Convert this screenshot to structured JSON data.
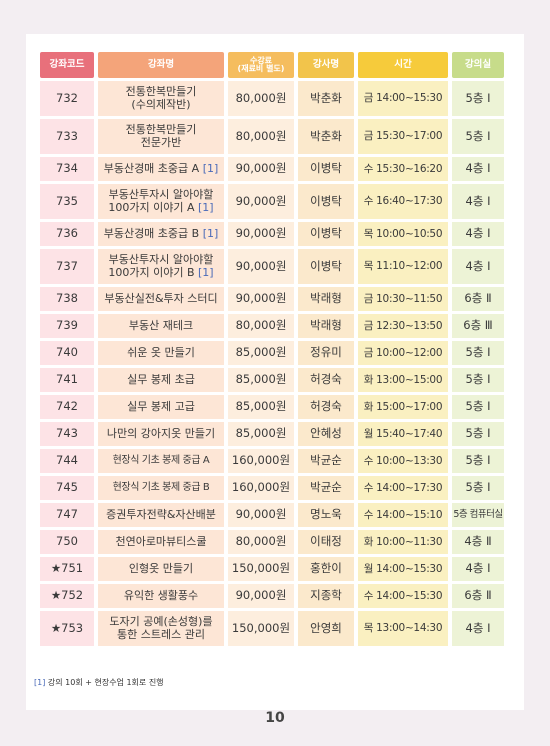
{
  "headers": {
    "code": "강좌코드",
    "name": "강좌명",
    "fee_line1": "수강료",
    "fee_line2": "(재료비 별도)",
    "teacher": "강사명",
    "time": "시간",
    "room": "강의실"
  },
  "rows": [
    {
      "code": "732",
      "name": "전통한복만들기\n(수의제작반)",
      "ref": "",
      "fee": "80,000원",
      "teacher": "박춘화",
      "time": "금 14:00~15:30",
      "room": "5층 Ⅰ",
      "tall": true
    },
    {
      "code": "733",
      "name": "전통한복만들기\n전문가반",
      "ref": "",
      "fee": "80,000원",
      "teacher": "박춘화",
      "time": "금 15:30~17:00",
      "room": "5층 Ⅰ",
      "tall": true
    },
    {
      "code": "734",
      "name": "부동산경매 초중급 A ",
      "ref": "[1]",
      "fee": "90,000원",
      "teacher": "이병탁",
      "time": "수 15:30~16:20",
      "room": "4층 Ⅰ",
      "tall": false
    },
    {
      "code": "735",
      "name": "부동산투자시 알아야할\n100가지 이야기 A ",
      "ref": "[1]",
      "fee": "90,000원",
      "teacher": "이병탁",
      "time": "수 16:40~17:30",
      "room": "4층 Ⅰ",
      "tall": true
    },
    {
      "code": "736",
      "name": "부동산경매 초중급 B ",
      "ref": "[1]",
      "fee": "90,000원",
      "teacher": "이병탁",
      "time": "목 10:00~10:50",
      "room": "4층 Ⅰ",
      "tall": false
    },
    {
      "code": "737",
      "name": "부동산투자시 알아야할\n100가지 이야기 B ",
      "ref": "[1]",
      "fee": "90,000원",
      "teacher": "이병탁",
      "time": "목 11:10~12:00",
      "room": "4층 Ⅰ",
      "tall": true
    },
    {
      "code": "738",
      "name": "부동산실전&투자 스터디",
      "ref": "",
      "fee": "90,000원",
      "teacher": "박래형",
      "time": "금 10:30~11:50",
      "room": "6층 Ⅱ",
      "tall": false
    },
    {
      "code": "739",
      "name": "부동산 재테크",
      "ref": "",
      "fee": "80,000원",
      "teacher": "박래형",
      "time": "금 12:30~13:50",
      "room": "6층 Ⅲ",
      "tall": false
    },
    {
      "code": "740",
      "name": "쉬운 옷 만들기",
      "ref": "",
      "fee": "85,000원",
      "teacher": "정유미",
      "time": "금 10:00~12:00",
      "room": "5층 Ⅰ",
      "tall": false
    },
    {
      "code": "741",
      "name": "실무 봉제 초급",
      "ref": "",
      "fee": "85,000원",
      "teacher": "허경숙",
      "time": "화 13:00~15:00",
      "room": "5층 Ⅰ",
      "tall": false
    },
    {
      "code": "742",
      "name": "실무 봉제 고급",
      "ref": "",
      "fee": "85,000원",
      "teacher": "허경숙",
      "time": "화 15:00~17:00",
      "room": "5층 Ⅰ",
      "tall": false
    },
    {
      "code": "743",
      "name": "나만의 강아지옷 만들기",
      "ref": "",
      "fee": "85,000원",
      "teacher": "안혜성",
      "time": "월 15:40~17:40",
      "room": "5층 Ⅰ",
      "tall": false
    },
    {
      "code": "744",
      "name": "현장식 기초 봉제 중급 A",
      "ref": "",
      "fee": "160,000원",
      "teacher": "박균순",
      "time": "수 10:00~13:30",
      "room": "5층 Ⅰ",
      "tall": false
    },
    {
      "code": "745",
      "name": "현장식 기초 봉제 중급 B",
      "ref": "",
      "fee": "160,000원",
      "teacher": "박균순",
      "time": "수 14:00~17:30",
      "room": "5층 Ⅰ",
      "tall": false
    },
    {
      "code": "747",
      "name": "증권투자전략&자산배분",
      "ref": "",
      "fee": "90,000원",
      "teacher": "명노욱",
      "time": "수 14:00~15:10",
      "room": "5층 컴퓨터실",
      "tall": false
    },
    {
      "code": "750",
      "name": "천연아로마뷰티스쿨",
      "ref": "",
      "fee": "80,000원",
      "teacher": "이태정",
      "time": "화 10:00~11:30",
      "room": "4층 Ⅱ",
      "tall": false
    },
    {
      "code": "★751",
      "name": "인형옷 만들기",
      "ref": "",
      "fee": "150,000원",
      "teacher": "홍한이",
      "time": "월 14:00~15:30",
      "room": "4층 Ⅰ",
      "tall": false
    },
    {
      "code": "★752",
      "name": "유익한 생활풍수",
      "ref": "",
      "fee": "90,000원",
      "teacher": "지종학",
      "time": "수 14:00~15:30",
      "room": "6층 Ⅱ",
      "tall": false
    },
    {
      "code": "★753",
      "name": "도자기 공예(손성형)를\n통한 스트레스 관리",
      "ref": "",
      "fee": "150,000원",
      "teacher": "안영희",
      "time": "목 13:00~14:30",
      "room": "4층 Ⅰ",
      "tall": true
    }
  ],
  "footnote": {
    "ref": "[1]",
    "text": " 강의 10회 + 현장수업 1회로 진행"
  },
  "page_number": "10",
  "colors": {
    "code_header": "#e8707b",
    "name_header": "#f4a47a",
    "fee_header": "#f5bd5e",
    "teacher_header": "#f2c44b",
    "time_header": "#f6cb3b",
    "room_header": "#c7dc8a",
    "reference_note": "#4a6ab8"
  }
}
